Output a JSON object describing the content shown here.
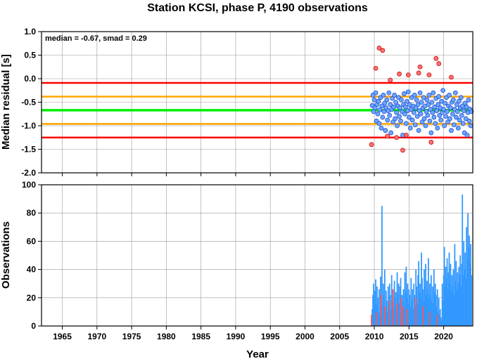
{
  "chart_data": [
    {
      "type": "scatter",
      "title": "Station KCSI, phase P, 4190 observations",
      "annotation": "median = -0.67, smad = 0.29",
      "xlabel": "",
      "ylabel": "Median residual [s]",
      "xlim": [
        1962,
        2024.2
      ],
      "ylim": [
        -2.0,
        1.0
      ],
      "x_ticks": [
        "1965",
        "1970",
        "1975",
        "1980",
        "1985",
        "1990",
        "1995",
        "2000",
        "2005",
        "2010",
        "2015",
        "2020"
      ],
      "y_ticks": [
        "1.0",
        "0.5",
        "0.0",
        "-0.5",
        "-1.0",
        "-1.5",
        "-2.0"
      ],
      "grid": true,
      "reference_lines": [
        {
          "name": "median",
          "value": -0.67,
          "color": "#00ee00"
        },
        {
          "name": "median ± 1 smad",
          "values": [
            -0.38,
            -0.96
          ],
          "color": "#ffa500"
        },
        {
          "name": "median ± 2 smad",
          "values": [
            -0.09,
            -1.25
          ],
          "color": "#ff0000"
        }
      ],
      "colors": {
        "inlier_fill": "#6ea6ff",
        "inlier_stroke": "#1f4fd0",
        "outlier_fill": "#ff7070",
        "outlier_stroke": "#c01010"
      },
      "series": [
        {
          "points": [
            [
              2009.7,
              -0.57
            ],
            [
              2009.8,
              -0.35
            ],
            [
              2009.9,
              -0.7
            ],
            [
              2010.0,
              -0.45
            ],
            [
              2010.1,
              -0.62
            ],
            [
              2010.2,
              -0.3
            ],
            [
              2010.3,
              -0.9
            ],
            [
              2010.4,
              -0.55
            ],
            [
              2010.5,
              -0.75
            ],
            [
              2010.6,
              -0.48
            ],
            [
              2010.7,
              -0.95
            ],
            [
              2010.8,
              -0.66
            ],
            [
              2010.9,
              -0.4
            ],
            [
              2011.0,
              -1.05
            ],
            [
              2011.1,
              -0.58
            ],
            [
              2011.2,
              -0.82
            ],
            [
              2011.3,
              -0.35
            ],
            [
              2011.4,
              -0.7
            ],
            [
              2011.5,
              -0.52
            ],
            [
              2011.6,
              -1.1
            ],
            [
              2011.7,
              -0.62
            ],
            [
              2011.8,
              -0.45
            ],
            [
              2011.9,
              -0.88
            ],
            [
              2012.0,
              -0.68
            ],
            [
              2012.1,
              -0.3
            ],
            [
              2012.2,
              -0.78
            ],
            [
              2012.3,
              -0.55
            ],
            [
              2012.4,
              -1.15
            ],
            [
              2012.5,
              -0.65
            ],
            [
              2012.6,
              -0.42
            ],
            [
              2012.7,
              -0.92
            ],
            [
              2012.8,
              -0.6
            ],
            [
              2012.9,
              -0.35
            ],
            [
              2013.0,
              -0.85
            ],
            [
              2013.1,
              -0.5
            ],
            [
              2013.2,
              -0.72
            ],
            [
              2013.3,
              -1.0
            ],
            [
              2013.4,
              -0.58
            ],
            [
              2013.5,
              -0.4
            ],
            [
              2013.6,
              -0.8
            ],
            [
              2013.7,
              -0.62
            ],
            [
              2013.8,
              -0.9
            ],
            [
              2013.9,
              -0.45
            ],
            [
              2014.0,
              -0.7
            ],
            [
              2014.1,
              -1.2
            ],
            [
              2014.2,
              -0.55
            ],
            [
              2014.3,
              -0.32
            ],
            [
              2014.4,
              -0.75
            ],
            [
              2014.5,
              -0.6
            ],
            [
              2014.6,
              -0.95
            ],
            [
              2014.7,
              -0.48
            ],
            [
              2014.8,
              -0.68
            ],
            [
              2014.9,
              -0.28
            ],
            [
              2015.0,
              -0.82
            ],
            [
              2015.1,
              -0.55
            ],
            [
              2015.2,
              -1.05
            ],
            [
              2015.3,
              -0.65
            ],
            [
              2015.4,
              -0.4
            ],
            [
              2015.5,
              -0.88
            ],
            [
              2015.6,
              -0.58
            ],
            [
              2015.7,
              -0.72
            ],
            [
              2015.8,
              -0.35
            ],
            [
              2015.9,
              -0.98
            ],
            [
              2016.0,
              -0.62
            ],
            [
              2016.1,
              -0.45
            ],
            [
              2016.2,
              -0.8
            ],
            [
              2016.3,
              -0.55
            ],
            [
              2016.4,
              -1.1
            ],
            [
              2016.5,
              -0.68
            ],
            [
              2016.6,
              -0.3
            ],
            [
              2016.7,
              -0.75
            ],
            [
              2016.8,
              -0.5
            ],
            [
              2016.9,
              -0.92
            ],
            [
              2017.0,
              -0.62
            ],
            [
              2017.1,
              -0.4
            ],
            [
              2017.2,
              -0.85
            ],
            [
              2017.3,
              -0.58
            ],
            [
              2017.4,
              -1.0
            ],
            [
              2017.5,
              -0.7
            ],
            [
              2017.6,
              -0.45
            ],
            [
              2017.7,
              -0.78
            ],
            [
              2017.8,
              -0.55
            ],
            [
              2017.9,
              -0.35
            ],
            [
              2018.0,
              -0.9
            ],
            [
              2018.1,
              -0.65
            ],
            [
              2018.2,
              -1.15
            ],
            [
              2018.3,
              -0.5
            ],
            [
              2018.4,
              -0.72
            ],
            [
              2018.5,
              -0.3
            ],
            [
              2018.6,
              -0.82
            ],
            [
              2018.7,
              -0.6
            ],
            [
              2018.8,
              -0.95
            ],
            [
              2018.9,
              -0.42
            ],
            [
              2019.0,
              -0.68
            ],
            [
              2019.1,
              -1.05
            ],
            [
              2019.2,
              -0.55
            ],
            [
              2019.3,
              -0.38
            ],
            [
              2019.4,
              -0.78
            ],
            [
              2019.5,
              -0.62
            ],
            [
              2019.6,
              -0.88
            ],
            [
              2019.7,
              -0.48
            ],
            [
              2019.8,
              -0.72
            ],
            [
              2019.9,
              -0.25
            ],
            [
              2020.0,
              -0.65
            ],
            [
              2020.1,
              -1.0
            ],
            [
              2020.2,
              -0.52
            ],
            [
              2020.3,
              -0.8
            ],
            [
              2020.4,
              -0.4
            ],
            [
              2020.5,
              -0.7
            ],
            [
              2020.6,
              -0.92
            ],
            [
              2020.7,
              -0.58
            ],
            [
              2020.8,
              -0.35
            ],
            [
              2020.9,
              -0.85
            ],
            [
              2021.0,
              -0.62
            ],
            [
              2021.1,
              -1.1
            ],
            [
              2021.2,
              -0.5
            ],
            [
              2021.3,
              -0.75
            ],
            [
              2021.4,
              -0.45
            ],
            [
              2021.5,
              -0.98
            ],
            [
              2021.6,
              -0.65
            ],
            [
              2021.7,
              -0.3
            ],
            [
              2021.8,
              -0.82
            ],
            [
              2021.9,
              -0.55
            ],
            [
              2022.0,
              -0.7
            ],
            [
              2022.1,
              -1.05
            ],
            [
              2022.2,
              -0.48
            ],
            [
              2022.3,
              -0.88
            ],
            [
              2022.4,
              -0.62
            ],
            [
              2022.5,
              -0.4
            ],
            [
              2022.6,
              -0.78
            ],
            [
              2022.7,
              -0.58
            ],
            [
              2022.8,
              -0.95
            ],
            [
              2022.9,
              -0.68
            ],
            [
              2023.0,
              -1.15
            ],
            [
              2023.1,
              -0.52
            ],
            [
              2023.2,
              -0.85
            ],
            [
              2023.3,
              -0.6
            ],
            [
              2023.4,
              -1.2
            ],
            [
              2023.5,
              -0.72
            ],
            [
              2023.6,
              -0.45
            ],
            [
              2023.7,
              -0.9
            ],
            [
              2023.8,
              -0.65
            ],
            [
              2023.9,
              -1.0
            ],
            [
              2024.0,
              -0.7
            ]
          ],
          "outlier": false
        },
        {
          "points": [
            [
              2009.6,
              -1.4
            ],
            [
              2010.2,
              0.22
            ],
            [
              2010.7,
              0.65
            ],
            [
              2011.2,
              0.6
            ],
            [
              2011.9,
              -1.22
            ],
            [
              2012.3,
              -0.03
            ],
            [
              2013.2,
              -1.25
            ],
            [
              2013.6,
              0.1
            ],
            [
              2014.1,
              -1.52
            ],
            [
              2014.6,
              -1.2
            ],
            [
              2014.9,
              0.08
            ],
            [
              2016.4,
              0.12
            ],
            [
              2016.6,
              0.25
            ],
            [
              2017.9,
              0.08
            ],
            [
              2018.2,
              -1.35
            ],
            [
              2018.9,
              0.43
            ],
            [
              2019.3,
              0.32
            ],
            [
              2021.1,
              0.03
            ]
          ],
          "outlier": true
        }
      ]
    },
    {
      "type": "bar",
      "title": "",
      "xlabel": "Year",
      "ylabel": "Observations",
      "xlim": [
        1962,
        2024.2
      ],
      "ylim": [
        0,
        100
      ],
      "x_ticks": [
        "1965",
        "1970",
        "1975",
        "1980",
        "1985",
        "1990",
        "1995",
        "2000",
        "2005",
        "2010",
        "2015",
        "2020"
      ],
      "y_ticks": [
        "100",
        "80",
        "60",
        "40",
        "20",
        "0"
      ],
      "grid": true,
      "colors": {
        "primary": "#3399ff",
        "secondary": "#ff5555"
      },
      "series": [
        {
          "name": "",
          "x": [
            2009.6,
            2009.7,
            2009.8,
            2009.9,
            2010.0,
            2010.1,
            2010.2,
            2010.3,
            2010.4,
            2010.5,
            2010.6,
            2010.7,
            2010.8,
            2010.9,
            2011.0,
            2011.1,
            2011.2,
            2011.3,
            2011.4,
            2011.5,
            2011.6,
            2011.7,
            2011.8,
            2011.9,
            2012.0,
            2012.1,
            2012.2,
            2012.3,
            2012.4,
            2012.5,
            2012.6,
            2012.7,
            2012.8,
            2012.9,
            2013.0,
            2013.1,
            2013.2,
            2013.3,
            2013.4,
            2013.5,
            2013.6,
            2013.7,
            2013.8,
            2013.9,
            2014.0,
            2014.1,
            2014.2,
            2014.3,
            2014.4,
            2014.5,
            2014.6,
            2014.7,
            2014.8,
            2014.9,
            2015.0,
            2015.1,
            2015.2,
            2015.3,
            2015.4,
            2015.5,
            2015.6,
            2015.7,
            2015.8,
            2015.9,
            2016.0,
            2016.1,
            2016.2,
            2016.3,
            2016.4,
            2016.5,
            2016.6,
            2016.7,
            2016.8,
            2016.9,
            2017.0,
            2017.1,
            2017.2,
            2017.3,
            2017.4,
            2017.5,
            2017.6,
            2017.7,
            2017.8,
            2017.9,
            2018.0,
            2018.1,
            2018.2,
            2018.3,
            2018.4,
            2018.5,
            2018.6,
            2018.7,
            2018.8,
            2018.9,
            2019.0,
            2019.1,
            2019.2,
            2019.3,
            2019.4,
            2019.5,
            2019.6,
            2019.7,
            2019.8,
            2019.9,
            2020.0,
            2020.1,
            2020.2,
            2020.3,
            2020.4,
            2020.5,
            2020.6,
            2020.7,
            2020.8,
            2020.9,
            2021.0,
            2021.1,
            2021.2,
            2021.3,
            2021.4,
            2021.5,
            2021.6,
            2021.7,
            2021.8,
            2021.9,
            2022.0,
            2022.1,
            2022.2,
            2022.3,
            2022.4,
            2022.5,
            2022.6,
            2022.7,
            2022.8,
            2022.9,
            2023.0,
            2023.1,
            2023.2,
            2023.3,
            2023.4,
            2023.5,
            2023.6,
            2023.7,
            2023.8,
            2023.9,
            2024.0
          ],
          "values": [
            5,
            12,
            22,
            30,
            18,
            25,
            33,
            15,
            28,
            20,
            10,
            26,
            8,
            35,
            20,
            85,
            14,
            30,
            22,
            40,
            12,
            25,
            18,
            10,
            28,
            16,
            30,
            22,
            12,
            36,
            18,
            26,
            14,
            32,
            20,
            24,
            10,
            38,
            22,
            30,
            16,
            28,
            34,
            12,
            22,
            18,
            26,
            14,
            38,
            24,
            42,
            20,
            30,
            16,
            26,
            22,
            14,
            34,
            18,
            26,
            12,
            30,
            22,
            14,
            40,
            28,
            16,
            36,
            46,
            24,
            30,
            20,
            52,
            34,
            26,
            18,
            40,
            28,
            44,
            22,
            32,
            26,
            48,
            20,
            30,
            22,
            36,
            18,
            28,
            16,
            40,
            24,
            30,
            22,
            14,
            26,
            10,
            20,
            8,
            12,
            6,
            4,
            30,
            18,
            36,
            56,
            28,
            42,
            34,
            48,
            26,
            38,
            52,
            30,
            44,
            24,
            36,
            28,
            40,
            22,
            58,
            32,
            46,
            26,
            38,
            30,
            42,
            36,
            50,
            28,
            44,
            93,
            36,
            60,
            40,
            52,
            34,
            70,
            48,
            80,
            56,
            64,
            44,
            58,
            36
          ]
        },
        {
          "name": "",
          "x": [
            2009.6,
            2010.3,
            2011.0,
            2011.5,
            2012.2,
            2012.7,
            2013.3,
            2013.8,
            2014.2,
            2014.8,
            2016.0,
            2017.0,
            2018.0,
            2019.1
          ],
          "values": [
            8,
            10,
            22,
            14,
            18,
            26,
            16,
            20,
            14,
            12,
            20,
            14,
            10,
            8
          ]
        }
      ]
    }
  ]
}
